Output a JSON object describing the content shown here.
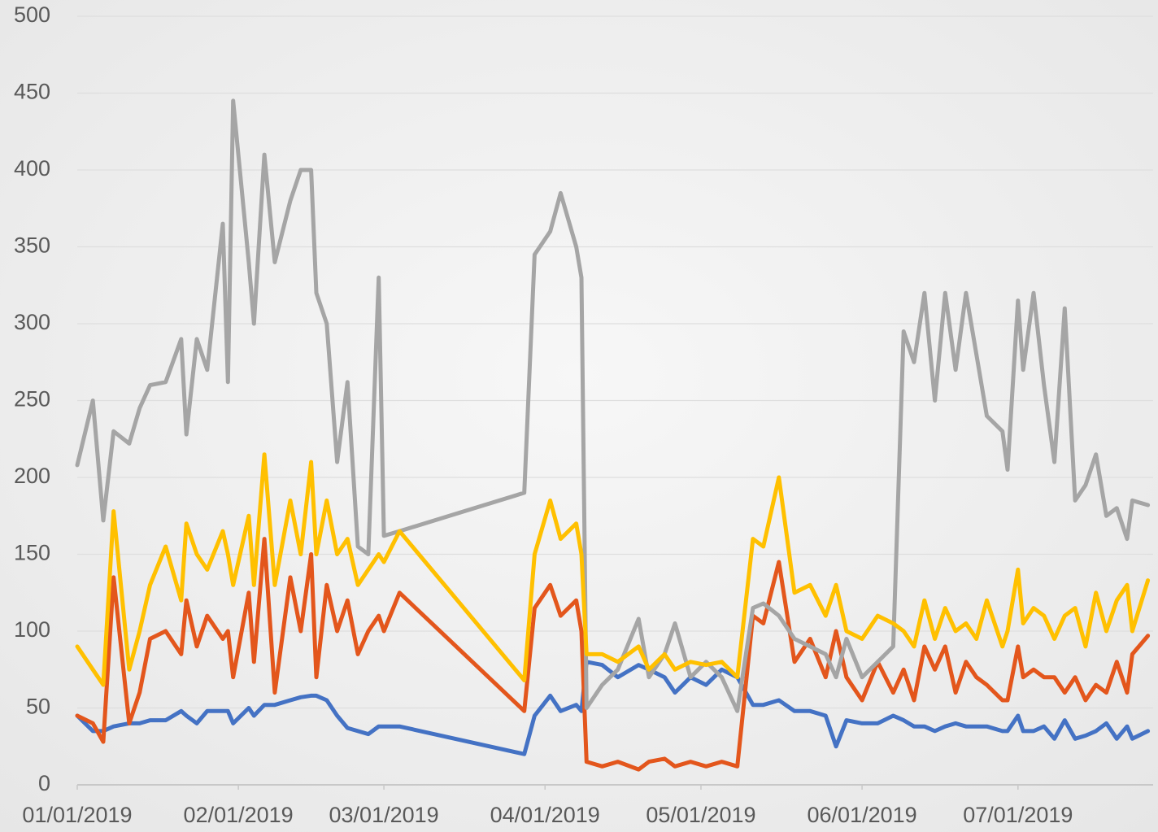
{
  "chart_data": {
    "type": "line",
    "x": [
      "01/01/2019",
      "01/04/2019",
      "01/06/2019",
      "01/08/2019",
      "01/11/2019",
      "01/13/2019",
      "01/15/2019",
      "01/18/2019",
      "01/21/2019",
      "01/22/2019",
      "01/24/2019",
      "01/26/2019",
      "01/29/2019",
      "01/30/2019",
      "01/31/2019",
      "02/03/2019",
      "02/04/2019",
      "02/06/2019",
      "02/08/2019",
      "02/11/2019",
      "02/13/2019",
      "02/15/2019",
      "02/16/2019",
      "02/18/2019",
      "02/20/2019",
      "02/22/2019",
      "02/24/2019",
      "02/26/2019",
      "02/28/2019",
      "03/01/2019",
      "03/04/2019",
      "03/28/2019",
      "03/30/2019",
      "04/02/2019",
      "04/04/2019",
      "04/07/2019",
      "04/08/2019",
      "04/09/2019",
      "04/12/2019",
      "04/15/2019",
      "04/19/2019",
      "04/21/2019",
      "04/24/2019",
      "04/26/2019",
      "04/29/2019",
      "05/02/2019",
      "05/05/2019",
      "05/08/2019",
      "05/11/2019",
      "05/13/2019",
      "05/16/2019",
      "05/19/2019",
      "05/22/2019",
      "05/25/2019",
      "05/27/2019",
      "05/29/2019",
      "06/01/2019",
      "06/04/2019",
      "06/07/2019",
      "06/09/2019",
      "06/11/2019",
      "06/13/2019",
      "06/15/2019",
      "06/17/2019",
      "06/19/2019",
      "06/21/2019",
      "06/23/2019",
      "06/25/2019",
      "06/28/2019",
      "06/29/2019",
      "07/01/2019",
      "07/02/2019",
      "07/04/2019",
      "07/06/2019",
      "07/08/2019",
      "07/10/2019",
      "07/12/2019",
      "07/14/2019",
      "07/16/2019",
      "07/18/2019",
      "07/20/2019",
      "07/22/2019",
      "07/23/2019",
      "07/26/2019"
    ],
    "series": [
      {
        "color": "#4472c4",
        "values": [
          45,
          35,
          35,
          38,
          40,
          40,
          42,
          42,
          48,
          45,
          40,
          48,
          48,
          48,
          40,
          50,
          45,
          52,
          52,
          55,
          57,
          58,
          58,
          55,
          45,
          37,
          35,
          33,
          38,
          38,
          38,
          20,
          45,
          58,
          48,
          52,
          48,
          80,
          78,
          70,
          78,
          75,
          70,
          60,
          70,
          65,
          75,
          70,
          52,
          52,
          55,
          48,
          48,
          45,
          25,
          42,
          40,
          40,
          45,
          42,
          38,
          38,
          35,
          38,
          40,
          38,
          38,
          38,
          35,
          35,
          45,
          35,
          35,
          38,
          30,
          42,
          30,
          32,
          35,
          40,
          30,
          38,
          30,
          35
        ]
      },
      {
        "color": "#e3561c",
        "values": [
          45,
          40,
          28,
          135,
          40,
          60,
          95,
          100,
          85,
          120,
          90,
          110,
          95,
          100,
          70,
          125,
          80,
          160,
          60,
          135,
          100,
          150,
          70,
          130,
          100,
          120,
          85,
          100,
          110,
          100,
          125,
          48,
          115,
          130,
          110,
          120,
          100,
          15,
          12,
          15,
          10,
          15,
          17,
          12,
          15,
          12,
          15,
          12,
          110,
          105,
          145,
          80,
          95,
          70,
          100,
          70,
          55,
          80,
          60,
          75,
          55,
          90,
          75,
          90,
          60,
          80,
          70,
          65,
          55,
          55,
          90,
          70,
          75,
          70,
          70,
          60,
          70,
          55,
          65,
          60,
          80,
          60,
          85,
          97
        ]
      },
      {
        "color": "#a5a5a5",
        "values": [
          208,
          250,
          172,
          230,
          222,
          245,
          260,
          262,
          290,
          228,
          290,
          270,
          365,
          262,
          445,
          340,
          300,
          410,
          340,
          380,
          400,
          400,
          320,
          300,
          210,
          262,
          155,
          150,
          330,
          162,
          165,
          190,
          345,
          360,
          385,
          350,
          330,
          50,
          65,
          75,
          108,
          70,
          85,
          105,
          70,
          80,
          70,
          48,
          115,
          118,
          110,
          95,
          90,
          85,
          70,
          95,
          70,
          80,
          90,
          295,
          275,
          320,
          250,
          320,
          270,
          320,
          280,
          240,
          230,
          205,
          315,
          270,
          320,
          260,
          210,
          310,
          185,
          195,
          215,
          175,
          180,
          160,
          185,
          182
        ]
      },
      {
        "color": "#ffc000",
        "values": [
          90,
          75,
          65,
          178,
          75,
          100,
          130,
          155,
          120,
          170,
          150,
          140,
          165,
          150,
          130,
          175,
          130,
          215,
          130,
          185,
          150,
          210,
          150,
          185,
          150,
          160,
          130,
          140,
          150,
          145,
          165,
          68,
          150,
          185,
          160,
          170,
          150,
          85,
          85,
          80,
          90,
          75,
          85,
          75,
          80,
          78,
          80,
          70,
          160,
          155,
          200,
          125,
          130,
          110,
          130,
          100,
          95,
          110,
          105,
          100,
          90,
          120,
          95,
          115,
          100,
          105,
          95,
          120,
          90,
          100,
          140,
          105,
          115,
          110,
          95,
          110,
          115,
          90,
          125,
          100,
          120,
          130,
          100,
          133
        ]
      }
    ],
    "xlim": [
      "01/01/2019",
      "07/27/2019"
    ],
    "xticks": [
      "01/01/2019",
      "02/01/2019",
      "03/01/2019",
      "04/01/2019",
      "05/01/2019",
      "06/01/2019",
      "07/01/2019"
    ],
    "ylim": [
      0,
      500
    ],
    "yticks": [
      0,
      50,
      100,
      150,
      200,
      250,
      300,
      350,
      400,
      450,
      500
    ],
    "grid": true
  }
}
